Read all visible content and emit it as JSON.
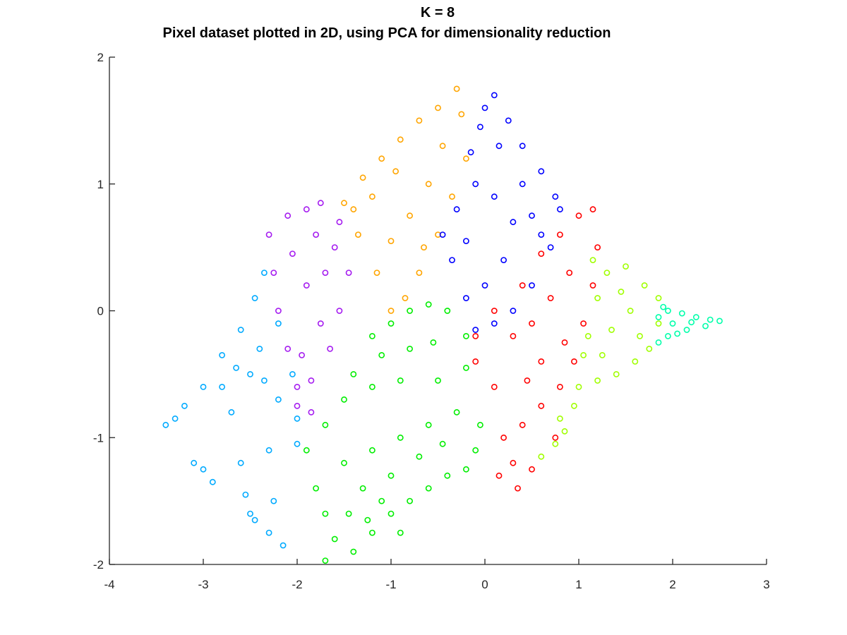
{
  "chart_data": {
    "type": "scatter",
    "title": [
      "K = 8",
      "Pixel dataset plotted in 2D, using PCA for dimensionality reduction"
    ],
    "xlabel": "",
    "ylabel": "",
    "xlim": [
      -4,
      3
    ],
    "ylim": [
      -2,
      2
    ],
    "xticks": [
      -4,
      -3,
      -2,
      -1,
      0,
      1,
      2,
      3
    ],
    "yticks": [
      -2,
      -1,
      0,
      1,
      2
    ],
    "xtick_labels": [
      "-4",
      "-3",
      "-2",
      "-1",
      "0",
      "1",
      "2",
      "3"
    ],
    "ytick_labels": [
      "-2",
      "-1",
      "0",
      "1",
      "2"
    ],
    "grid": false,
    "legend": false,
    "marker": "circle-open",
    "clusters": [
      {
        "color": "#00aaff",
        "points": [
          [
            -3.4,
            -0.9
          ],
          [
            -3.2,
            -0.75
          ],
          [
            -3.0,
            -0.6
          ],
          [
            -2.8,
            -0.35
          ],
          [
            -2.6,
            -0.15
          ],
          [
            -2.45,
            0.1
          ],
          [
            -2.35,
            0.3
          ],
          [
            -2.5,
            -0.5
          ],
          [
            -2.2,
            -0.7
          ],
          [
            -2.0,
            -0.85
          ],
          [
            -2.7,
            -0.8
          ],
          [
            -3.1,
            -1.2
          ],
          [
            -2.9,
            -1.35
          ],
          [
            -2.5,
            -1.6
          ],
          [
            -2.3,
            -1.75
          ],
          [
            -2.15,
            -1.85
          ],
          [
            -2.6,
            -1.2
          ],
          [
            -2.3,
            -1.1
          ],
          [
            -2.0,
            -1.05
          ],
          [
            -2.4,
            -0.3
          ],
          [
            -2.2,
            -0.1
          ],
          [
            -2.8,
            -0.6
          ],
          [
            -2.35,
            -0.55
          ],
          [
            -2.05,
            -0.5
          ],
          [
            -3.3,
            -0.85
          ],
          [
            -2.65,
            -0.45
          ],
          [
            -2.55,
            -1.45
          ],
          [
            -2.25,
            -1.5
          ],
          [
            -2.45,
            -1.65
          ],
          [
            -3.0,
            -1.25
          ]
        ]
      },
      {
        "color": "#a51cf0",
        "points": [
          [
            -2.3,
            0.6
          ],
          [
            -2.1,
            0.75
          ],
          [
            -1.9,
            0.8
          ],
          [
            -1.75,
            0.85
          ],
          [
            -2.25,
            0.3
          ],
          [
            -2.2,
            0.0
          ],
          [
            -2.1,
            -0.3
          ],
          [
            -2.0,
            -0.6
          ],
          [
            -1.85,
            -0.55
          ],
          [
            -1.65,
            -0.3
          ],
          [
            -1.55,
            0.0
          ],
          [
            -1.45,
            0.3
          ],
          [
            -1.6,
            0.5
          ],
          [
            -1.8,
            0.6
          ],
          [
            -1.9,
            0.2
          ],
          [
            -1.75,
            -0.1
          ],
          [
            -1.95,
            -0.35
          ],
          [
            -2.05,
            0.45
          ],
          [
            -1.7,
            0.3
          ],
          [
            -1.85,
            -0.8
          ],
          [
            -2.0,
            -0.75
          ],
          [
            -1.55,
            0.7
          ]
        ]
      },
      {
        "color": "#ffa500",
        "points": [
          [
            -1.5,
            0.85
          ],
          [
            -1.3,
            1.05
          ],
          [
            -1.1,
            1.2
          ],
          [
            -0.9,
            1.35
          ],
          [
            -0.7,
            1.5
          ],
          [
            -0.5,
            1.6
          ],
          [
            -0.3,
            1.75
          ],
          [
            -1.35,
            0.6
          ],
          [
            -1.15,
            0.3
          ],
          [
            -1.0,
            0.0
          ],
          [
            -0.85,
            0.1
          ],
          [
            -0.7,
            0.3
          ],
          [
            -0.5,
            0.6
          ],
          [
            -0.35,
            0.9
          ],
          [
            -0.2,
            1.2
          ],
          [
            -0.6,
            1.0
          ],
          [
            -0.8,
            0.75
          ],
          [
            -1.0,
            0.55
          ],
          [
            -1.2,
            0.9
          ],
          [
            -0.45,
            1.3
          ],
          [
            -0.95,
            1.1
          ],
          [
            -0.65,
            0.5
          ],
          [
            -1.4,
            0.8
          ],
          [
            -0.25,
            1.55
          ]
        ]
      },
      {
        "color": "#0000ff",
        "points": [
          [
            -0.15,
            1.25
          ],
          [
            0.0,
            1.6
          ],
          [
            0.1,
            1.7
          ],
          [
            0.25,
            1.5
          ],
          [
            0.4,
            1.3
          ],
          [
            0.6,
            1.1
          ],
          [
            0.75,
            0.9
          ],
          [
            0.8,
            0.8
          ],
          [
            0.7,
            0.5
          ],
          [
            0.5,
            0.2
          ],
          [
            0.3,
            0.0
          ],
          [
            0.1,
            -0.1
          ],
          [
            -0.1,
            -0.15
          ],
          [
            -0.2,
            0.1
          ],
          [
            -0.35,
            0.4
          ],
          [
            -0.45,
            0.6
          ],
          [
            -0.3,
            0.8
          ],
          [
            -0.1,
            1.0
          ],
          [
            0.1,
            0.9
          ],
          [
            0.3,
            0.7
          ],
          [
            0.5,
            0.75
          ],
          [
            0.2,
            0.4
          ],
          [
            0.0,
            0.2
          ],
          [
            -0.2,
            0.55
          ],
          [
            0.4,
            1.0
          ],
          [
            0.6,
            0.6
          ],
          [
            0.15,
            1.3
          ],
          [
            -0.05,
            1.45
          ]
        ]
      },
      {
        "color": "#ff0000",
        "points": [
          [
            0.4,
            0.2
          ],
          [
            0.6,
            0.45
          ],
          [
            0.8,
            0.6
          ],
          [
            1.0,
            0.75
          ],
          [
            1.15,
            0.8
          ],
          [
            1.2,
            0.5
          ],
          [
            1.15,
            0.2
          ],
          [
            1.05,
            -0.1
          ],
          [
            0.95,
            -0.4
          ],
          [
            0.8,
            -0.6
          ],
          [
            0.6,
            -0.75
          ],
          [
            0.4,
            -0.9
          ],
          [
            0.2,
            -1.0
          ],
          [
            0.1,
            -0.6
          ],
          [
            -0.1,
            -0.4
          ],
          [
            -0.1,
            -0.2
          ],
          [
            0.1,
            0.0
          ],
          [
            0.3,
            -0.2
          ],
          [
            0.5,
            -0.1
          ],
          [
            0.7,
            0.1
          ],
          [
            0.9,
            0.3
          ],
          [
            0.6,
            -0.4
          ],
          [
            0.3,
            -1.2
          ],
          [
            0.5,
            -1.25
          ],
          [
            0.35,
            -1.4
          ],
          [
            0.15,
            -1.3
          ],
          [
            0.75,
            -1.0
          ],
          [
            0.45,
            -0.55
          ],
          [
            0.85,
            -0.25
          ]
        ]
      },
      {
        "color": "#00ee00",
        "points": [
          [
            -1.4,
            -0.5
          ],
          [
            -1.2,
            -0.2
          ],
          [
            -1.0,
            -0.1
          ],
          [
            -0.8,
            0.0
          ],
          [
            -0.6,
            0.05
          ],
          [
            -0.4,
            0.0
          ],
          [
            -0.2,
            -0.2
          ],
          [
            -0.2,
            -0.45
          ],
          [
            -0.5,
            -0.55
          ],
          [
            -0.9,
            -0.55
          ],
          [
            -1.2,
            -0.6
          ],
          [
            -1.5,
            -0.7
          ],
          [
            -1.7,
            -0.9
          ],
          [
            -1.9,
            -1.1
          ],
          [
            -1.8,
            -1.4
          ],
          [
            -1.7,
            -1.6
          ],
          [
            -1.6,
            -1.8
          ],
          [
            -1.7,
            -1.97
          ],
          [
            -1.4,
            -1.9
          ],
          [
            -1.2,
            -1.75
          ],
          [
            -1.0,
            -1.6
          ],
          [
            -0.8,
            -1.5
          ],
          [
            -0.6,
            -1.4
          ],
          [
            -0.4,
            -1.3
          ],
          [
            -0.2,
            -1.25
          ],
          [
            -0.1,
            -1.1
          ],
          [
            -0.05,
            -0.9
          ],
          [
            -0.3,
            -0.8
          ],
          [
            -0.6,
            -0.9
          ],
          [
            -0.9,
            -1.0
          ],
          [
            -1.2,
            -1.1
          ],
          [
            -1.5,
            -1.2
          ],
          [
            -1.3,
            -1.4
          ],
          [
            -1.0,
            -1.3
          ],
          [
            -0.7,
            -1.15
          ],
          [
            -0.45,
            -1.05
          ],
          [
            -1.45,
            -1.6
          ],
          [
            -1.1,
            -1.5
          ],
          [
            -0.8,
            -0.3
          ],
          [
            -1.1,
            -0.35
          ],
          [
            -0.55,
            -0.25
          ],
          [
            -1.25,
            -1.65
          ],
          [
            -0.9,
            -1.75
          ]
        ]
      },
      {
        "color": "#a0ff00",
        "points": [
          [
            1.1,
            -0.2
          ],
          [
            1.2,
            0.1
          ],
          [
            1.3,
            0.3
          ],
          [
            1.5,
            0.35
          ],
          [
            1.7,
            0.2
          ],
          [
            1.85,
            0.1
          ],
          [
            1.85,
            -0.1
          ],
          [
            1.75,
            -0.3
          ],
          [
            1.6,
            -0.4
          ],
          [
            1.4,
            -0.5
          ],
          [
            1.2,
            -0.55
          ],
          [
            1.0,
            -0.6
          ],
          [
            0.95,
            -0.75
          ],
          [
            0.8,
            -0.85
          ],
          [
            0.75,
            -1.05
          ],
          [
            0.6,
            -1.15
          ],
          [
            1.05,
            -0.35
          ],
          [
            1.35,
            -0.15
          ],
          [
            1.55,
            0.0
          ],
          [
            1.65,
            -0.2
          ],
          [
            1.45,
            0.15
          ],
          [
            1.25,
            -0.35
          ],
          [
            0.85,
            -0.95
          ],
          [
            1.15,
            0.4
          ]
        ]
      },
      {
        "color": "#00ffaa",
        "points": [
          [
            1.85,
            -0.05
          ],
          [
            1.95,
            0.0
          ],
          [
            2.1,
            -0.02
          ],
          [
            2.25,
            -0.05
          ],
          [
            2.4,
            -0.07
          ],
          [
            2.5,
            -0.08
          ],
          [
            2.35,
            -0.12
          ],
          [
            2.15,
            -0.15
          ],
          [
            1.95,
            -0.2
          ],
          [
            1.85,
            -0.25
          ],
          [
            2.0,
            -0.1
          ],
          [
            2.2,
            -0.09
          ],
          [
            1.9,
            0.03
          ],
          [
            2.05,
            -0.18
          ]
        ]
      }
    ]
  }
}
